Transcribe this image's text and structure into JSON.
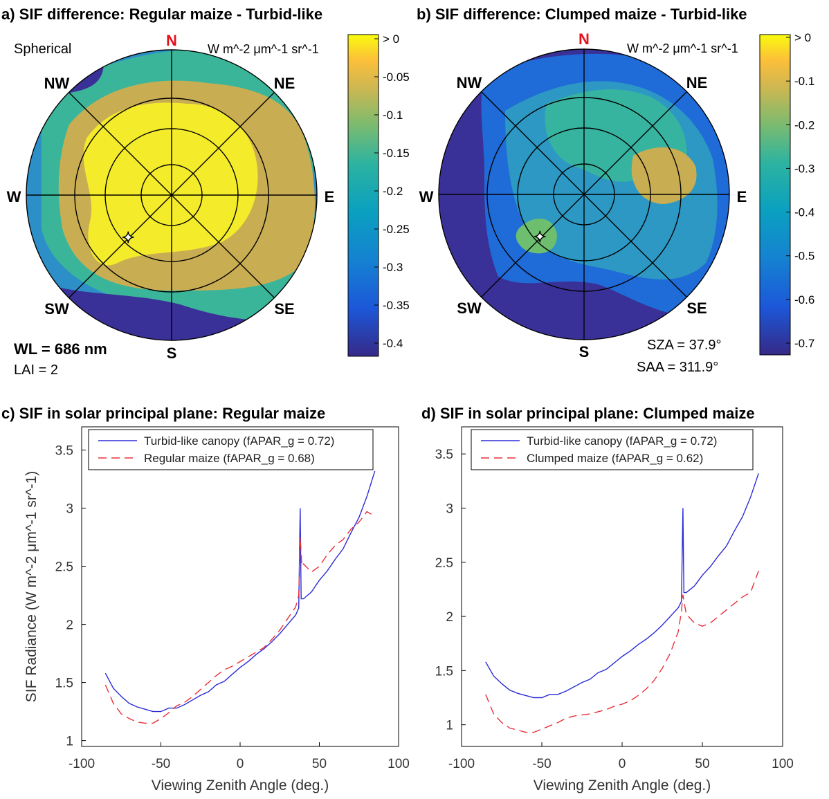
{
  "figure": {
    "panels": {
      "a": {
        "title": "a) SIF difference: Regular maize - Turbid-like",
        "mode_label": "Spherical",
        "unit_label": "W m^-2 μm^-1 sr^-1",
        "wl_label": "WL = 686 nm",
        "lai_label": "LAI = 2",
        "colorbar_ticks": [
          "> 0",
          "-0.05",
          "-0.1",
          "-0.15",
          "-0.2",
          "-0.25",
          "-0.3",
          "-0.35",
          "-0.4"
        ]
      },
      "b": {
        "title": "b) SIF difference: Clumped maize - Turbid-like",
        "unit_label": "W m^-2 μm^-1 sr^-1",
        "sza_label": "SZA = 37.9°",
        "saa_label": "SAA = 311.9°",
        "colorbar_ticks": [
          "> 0",
          "-0.1",
          "-0.2",
          "-0.3",
          "-0.4",
          "-0.5",
          "-0.6",
          "-0.7"
        ]
      },
      "c": {
        "title": "c) SIF in solar principal plane: Regular maize"
      },
      "d": {
        "title": "d) SIF in solar principal plane: Clumped maize"
      }
    },
    "compass": {
      "n": "N",
      "ne": "NE",
      "e": "E",
      "se": "SE",
      "s": "S",
      "sw": "SW",
      "w": "W",
      "nw": "NW"
    },
    "colors": {
      "north_label": "#e8101a",
      "turbid_line": "#2b2bd6",
      "maize_line": "#e8303a"
    }
  },
  "chart_data": [
    {
      "type": "line",
      "panel": "c",
      "title": "c) SIF in solar principal plane: Regular maize",
      "xlabel": "Viewing Zenith Angle (deg.)",
      "ylabel": "SIF Radiance (W m^-2 μm^-1 sr^-1)",
      "xlim": [
        -100,
        100
      ],
      "ylim": [
        0.95,
        3.7
      ],
      "xticks": [
        -100,
        -50,
        0,
        50,
        100
      ],
      "yticks": [
        1,
        1.5,
        2,
        2.5,
        3,
        3.5
      ],
      "legend_position": "top",
      "series": [
        {
          "name": "Turbid-like canopy (fAPAR_g = 0.72)",
          "style": "solid",
          "x": [
            -85,
            -80,
            -75,
            -70,
            -65,
            -60,
            -55,
            -50,
            -45,
            -40,
            -35,
            -30,
            -25,
            -20,
            -15,
            -10,
            -5,
            0,
            5,
            10,
            15,
            20,
            25,
            30,
            35,
            37,
            37.9,
            38.5,
            40,
            45,
            50,
            55,
            60,
            65,
            70,
            75,
            80,
            85
          ],
          "y": [
            1.58,
            1.45,
            1.38,
            1.32,
            1.29,
            1.27,
            1.25,
            1.25,
            1.28,
            1.28,
            1.31,
            1.35,
            1.39,
            1.42,
            1.48,
            1.51,
            1.57,
            1.63,
            1.68,
            1.74,
            1.79,
            1.85,
            1.92,
            2.0,
            2.08,
            2.14,
            3.0,
            2.22,
            2.22,
            2.28,
            2.38,
            2.46,
            2.56,
            2.65,
            2.79,
            2.92,
            3.1,
            3.32
          ]
        },
        {
          "name": "Regular maize (fAPAR_g = 0.68)",
          "style": "dashed",
          "x": [
            -85,
            -80,
            -75,
            -70,
            -65,
            -60,
            -55,
            -50,
            -45,
            -40,
            -35,
            -30,
            -25,
            -20,
            -15,
            -10,
            -5,
            0,
            5,
            10,
            15,
            20,
            25,
            30,
            35,
            37,
            37.9,
            39,
            40,
            45,
            50,
            55,
            60,
            65,
            70,
            75,
            80,
            85
          ],
          "y": [
            1.48,
            1.32,
            1.23,
            1.19,
            1.16,
            1.15,
            1.15,
            1.19,
            1.24,
            1.3,
            1.33,
            1.38,
            1.44,
            1.5,
            1.56,
            1.61,
            1.64,
            1.68,
            1.72,
            1.76,
            1.8,
            1.87,
            1.95,
            2.05,
            2.15,
            2.25,
            2.75,
            2.5,
            2.52,
            2.45,
            2.5,
            2.6,
            2.68,
            2.73,
            2.82,
            2.88,
            2.97,
            2.93
          ]
        }
      ]
    },
    {
      "type": "line",
      "panel": "d",
      "title": "d) SIF in solar principal plane: Clumped maize",
      "xlabel": "Viewing Zenith Angle (deg.)",
      "ylabel": "",
      "xlim": [
        -100,
        100
      ],
      "ylim": [
        0.8,
        3.75
      ],
      "xticks": [
        -100,
        -50,
        0,
        50,
        100
      ],
      "yticks": [
        1,
        1.5,
        2,
        2.5,
        3,
        3.5
      ],
      "legend_position": "top-left",
      "series": [
        {
          "name": "Turbid-like canopy (fAPAR_g = 0.72)",
          "style": "solid",
          "x": [
            -85,
            -80,
            -75,
            -70,
            -65,
            -60,
            -55,
            -50,
            -45,
            -40,
            -35,
            -30,
            -25,
            -20,
            -15,
            -10,
            -5,
            0,
            5,
            10,
            15,
            20,
            25,
            30,
            35,
            37,
            37.9,
            38.5,
            40,
            45,
            50,
            55,
            60,
            65,
            70,
            75,
            80,
            85
          ],
          "y": [
            1.58,
            1.45,
            1.38,
            1.32,
            1.29,
            1.27,
            1.25,
            1.25,
            1.28,
            1.28,
            1.31,
            1.35,
            1.39,
            1.42,
            1.48,
            1.51,
            1.57,
            1.63,
            1.68,
            1.74,
            1.79,
            1.85,
            1.92,
            2.0,
            2.08,
            2.14,
            3.0,
            2.22,
            2.22,
            2.28,
            2.38,
            2.46,
            2.56,
            2.65,
            2.79,
            2.92,
            3.1,
            3.32
          ]
        },
        {
          "name": "Clumped maize (fAPAR_g = 0.62)",
          "style": "dashed",
          "x": [
            -85,
            -80,
            -75,
            -70,
            -65,
            -60,
            -55,
            -50,
            -45,
            -40,
            -35,
            -30,
            -25,
            -20,
            -15,
            -10,
            -5,
            0,
            5,
            10,
            15,
            20,
            25,
            30,
            35,
            37,
            37.9,
            39,
            40,
            45,
            50,
            55,
            60,
            65,
            70,
            75,
            80,
            85
          ],
          "y": [
            1.28,
            1.1,
            1.02,
            0.97,
            0.95,
            0.93,
            0.93,
            0.96,
            0.99,
            1.02,
            1.06,
            1.08,
            1.09,
            1.1,
            1.12,
            1.14,
            1.17,
            1.19,
            1.22,
            1.27,
            1.33,
            1.41,
            1.52,
            1.66,
            1.86,
            2.05,
            2.2,
            2.1,
            2.02,
            1.94,
            1.91,
            1.94,
            2.0,
            2.06,
            2.12,
            2.18,
            2.22,
            2.42
          ]
        }
      ]
    }
  ]
}
